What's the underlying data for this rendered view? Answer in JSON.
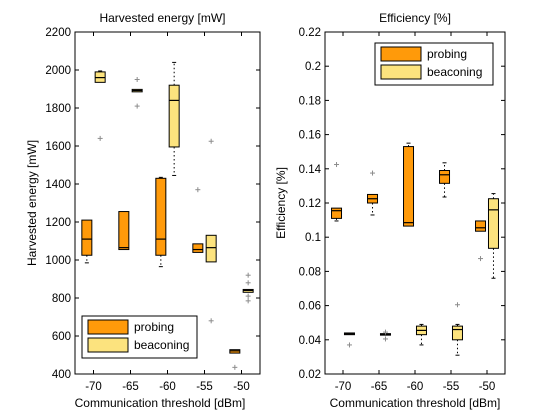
{
  "colors": {
    "probing": "#ff9a0a",
    "beaconing": "#fce37e",
    "outlier": "#8c8c8c",
    "axis": "#000000",
    "edge": "#000000"
  },
  "chart_data": [
    {
      "type": "box",
      "title": "Harvested energy [mW]",
      "xlabel": "Communication threshold [dBm]",
      "ylabel": "Harvested energy [mW]",
      "categories": [
        "-70",
        "-65",
        "-60",
        "-55",
        "-50"
      ],
      "ylim": [
        400,
        2200
      ],
      "yticks": [
        400,
        600,
        800,
        1000,
        1200,
        1400,
        1600,
        1800,
        2000,
        2200
      ],
      "ytick_labels": [
        "400",
        "600",
        "800",
        "1000",
        "1200",
        "1400",
        "1600",
        "1800",
        "2000",
        "2200"
      ],
      "legend": {
        "position": "bottom-left",
        "entries": [
          "probing",
          "beaconing"
        ]
      },
      "series": [
        {
          "name": "probing",
          "boxes": [
            {
              "q1": 1025,
              "median": 1110,
              "q3": 1210,
              "whisker_low": 985,
              "whisker_high": 1210,
              "outliers": []
            },
            {
              "q1": 1055,
              "median": 1065,
              "q3": 1255,
              "whisker_low": 1055,
              "whisker_high": 1255,
              "outliers": []
            },
            {
              "q1": 1025,
              "median": 1110,
              "q3": 1430,
              "whisker_low": 965,
              "whisker_high": 1435,
              "outliers": []
            },
            {
              "q1": 1040,
              "median": 1055,
              "q3": 1085,
              "whisker_low": 1040,
              "whisker_high": 1085,
              "outliers": [
                1370
              ]
            },
            {
              "q1": 510,
              "median": 522,
              "q3": 528,
              "whisker_low": 510,
              "whisker_high": 528,
              "outliers": [
                435
              ]
            }
          ]
        },
        {
          "name": "beaconing",
          "boxes": [
            {
              "q1": 1935,
              "median": 1960,
              "q3": 1990,
              "whisker_low": 1935,
              "whisker_high": 1995,
              "outliers": [
                1640
              ]
            },
            {
              "q1": 1885,
              "median": 1892,
              "q3": 1898,
              "whisker_low": 1885,
              "whisker_high": 1898,
              "outliers": [
                1950,
                1810
              ]
            },
            {
              "q1": 1595,
              "median": 1840,
              "q3": 1920,
              "whisker_low": 1445,
              "whisker_high": 2040,
              "outliers": []
            },
            {
              "q1": 990,
              "median": 1065,
              "q3": 1130,
              "whisker_low": 990,
              "whisker_high": 1130,
              "outliers": [
                1625,
                680
              ]
            },
            {
              "q1": 830,
              "median": 840,
              "q3": 845,
              "whisker_low": 830,
              "whisker_high": 845,
              "outliers": [
                920,
                880,
                810,
                785
              ]
            }
          ]
        }
      ]
    },
    {
      "type": "box",
      "title": "Efficiency [%]",
      "xlabel": "Communication threshold [dBm]",
      "ylabel": "Efficiency [%]",
      "categories": [
        "-70",
        "-65",
        "-60",
        "-55",
        "-50"
      ],
      "ylim": [
        0.02,
        0.22
      ],
      "yticks": [
        0.02,
        0.04,
        0.06,
        0.08,
        0.1,
        0.12,
        0.14,
        0.16,
        0.18,
        0.2,
        0.22
      ],
      "ytick_labels": [
        "0.02",
        "0.04",
        "0.06",
        "0.08",
        "0.1",
        "0.12",
        "0.14",
        "0.16",
        "0.18",
        "0.2",
        "0.22"
      ],
      "legend": {
        "position": "top-right",
        "entries": [
          "probing",
          "beaconing"
        ]
      },
      "series": [
        {
          "name": "probing",
          "boxes": [
            {
              "q1": 0.111,
              "median": 0.1155,
              "q3": 0.117,
              "whisker_low": 0.1095,
              "whisker_high": 0.117,
              "outliers": [
                0.1425
              ]
            },
            {
              "q1": 0.12,
              "median": 0.1225,
              "q3": 0.125,
              "whisker_low": 0.113,
              "whisker_high": 0.125,
              "outliers": [
                0.1375
              ]
            },
            {
              "q1": 0.1065,
              "median": 0.1085,
              "q3": 0.153,
              "whisker_low": 0.1065,
              "whisker_high": 0.155,
              "outliers": []
            },
            {
              "q1": 0.1315,
              "median": 0.1365,
              "q3": 0.139,
              "whisker_low": 0.1235,
              "whisker_high": 0.1435,
              "outliers": []
            },
            {
              "q1": 0.1035,
              "median": 0.1055,
              "q3": 0.1095,
              "whisker_low": 0.1035,
              "whisker_high": 0.1095,
              "outliers": [
                0.0875
              ]
            }
          ]
        },
        {
          "name": "beaconing",
          "boxes": [
            {
              "q1": 0.043,
              "median": 0.0435,
              "q3": 0.044,
              "whisker_low": 0.043,
              "whisker_high": 0.044,
              "outliers": [
                0.037
              ]
            },
            {
              "q1": 0.0428,
              "median": 0.0432,
              "q3": 0.0436,
              "whisker_low": 0.0428,
              "whisker_high": 0.0436,
              "outliers": [
                0.0445,
                0.0405
              ]
            },
            {
              "q1": 0.043,
              "median": 0.0455,
              "q3": 0.048,
              "whisker_low": 0.037,
              "whisker_high": 0.049,
              "outliers": []
            },
            {
              "q1": 0.04,
              "median": 0.046,
              "q3": 0.048,
              "whisker_low": 0.031,
              "whisker_high": 0.049,
              "outliers": [
                0.0605
              ]
            },
            {
              "q1": 0.0935,
              "median": 0.116,
              "q3": 0.1225,
              "whisker_low": 0.076,
              "whisker_high": 0.1255,
              "outliers": []
            }
          ]
        }
      ]
    }
  ]
}
